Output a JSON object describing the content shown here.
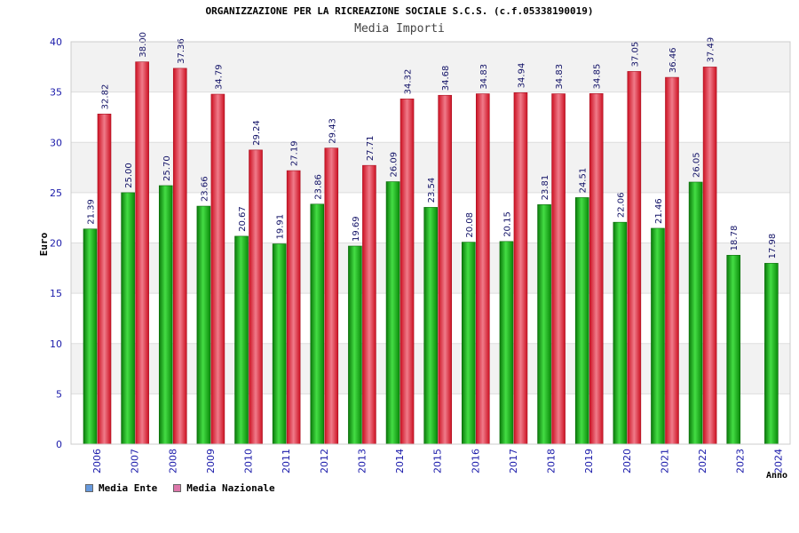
{
  "chart_data": {
    "type": "bar",
    "title": "ORGANIZZAZIONE PER LA RICREAZIONE SOCIALE S.C.S. (c.f.05338190019)",
    "subtitle": "Media Importi",
    "xlabel": "Anno",
    "ylabel": "Euro",
    "ylim": [
      0,
      40
    ],
    "yticks": [
      "0",
      "5",
      "10",
      "15",
      "20",
      "25",
      "30",
      "35",
      "40"
    ],
    "grid": true,
    "legend_position": "bottom-left",
    "categories": [
      "2006",
      "2007",
      "2008",
      "2009",
      "2010",
      "2011",
      "2012",
      "2013",
      "2014",
      "2015",
      "2016",
      "2017",
      "2018",
      "2019",
      "2020",
      "2021",
      "2022",
      "2023",
      "2024"
    ],
    "series": [
      {
        "name": "Media Ente",
        "legend_color": "#6699dd",
        "bar_color": "#22bb22",
        "values": [
          21.39,
          25.0,
          25.7,
          23.66,
          20.67,
          19.91,
          23.86,
          19.69,
          26.09,
          23.54,
          20.08,
          20.15,
          23.81,
          24.51,
          22.06,
          21.46,
          26.05,
          18.78,
          17.98
        ],
        "labels": [
          "21.39",
          "25.00",
          "25.70",
          "23.66",
          "20.67",
          "19.91",
          "23.86",
          "19.69",
          "26.09",
          "23.54",
          "20.08",
          "20.15",
          "23.81",
          "24.51",
          "22.06",
          "21.46",
          "26.05",
          "18.78",
          "17.98"
        ]
      },
      {
        "name": "Media Nazionale",
        "legend_color": "#dd77aa",
        "bar_color": "#ee2233",
        "values": [
          32.82,
          38.0,
          37.36,
          34.79,
          29.24,
          27.19,
          29.43,
          27.71,
          34.32,
          34.68,
          34.83,
          34.94,
          34.83,
          34.85,
          37.05,
          36.46,
          37.49,
          null,
          null
        ],
        "labels": [
          "32.82",
          "38.00",
          "37.36",
          "34.79",
          "29.24",
          "27.19",
          "29.43",
          "27.71",
          "34.32",
          "34.68",
          "34.83",
          "34.94",
          "34.83",
          "34.85",
          "37.05",
          "36.46",
          "37.49",
          "",
          ""
        ]
      }
    ]
  }
}
